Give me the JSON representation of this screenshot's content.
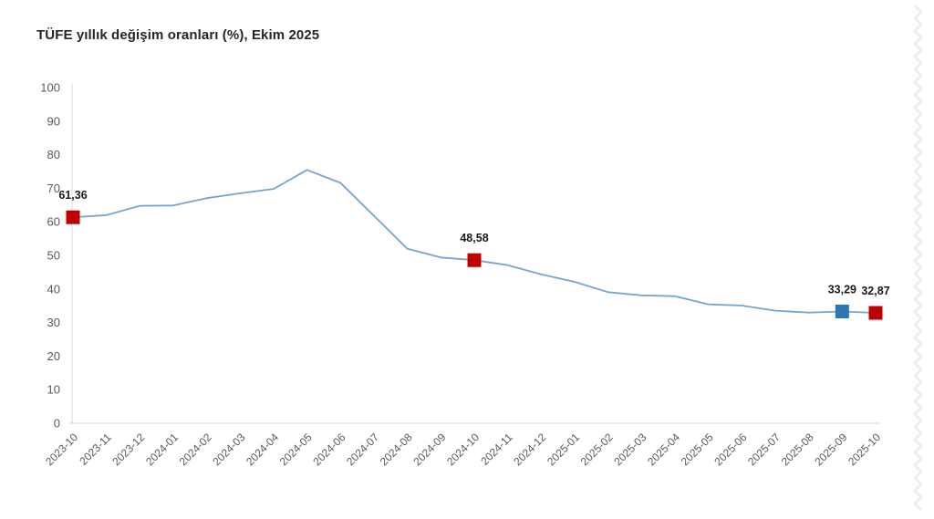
{
  "title": "TÜFE yıllık değişim oranları (%), Ekim 2025",
  "colors": {
    "background": "#ffffff",
    "line": "#74a5cf",
    "marker_red": "#c00000",
    "marker_blue": "#2e75b6",
    "axis_line": "#d9d9d9",
    "tick_text": "#595959",
    "title_text": "#262626",
    "data_label_text": "#1a1a1a",
    "watermark": "#ededed"
  },
  "chart_data": {
    "type": "line",
    "title": "TÜFE yıllık değişim oranları (%), Ekim 2025",
    "xlabel": "",
    "ylabel": "",
    "ylim": [
      0,
      100
    ],
    "ytick_step": 10,
    "grid": false,
    "legend": false,
    "x": [
      "2023-10",
      "2023-11",
      "2023-12",
      "2024-01",
      "2024-02",
      "2024-03",
      "2024-04",
      "2024-05",
      "2024-06",
      "2024-07",
      "2024-08",
      "2024-09",
      "2024-10",
      "2024-11",
      "2024-12",
      "2025-01",
      "2025-02",
      "2025-03",
      "2025-04",
      "2025-05",
      "2025-06",
      "2025-07",
      "2025-08",
      "2025-09",
      "2025-10"
    ],
    "series": [
      {
        "values": [
          61.36,
          61.98,
          64.77,
          64.86,
          67.07,
          68.5,
          69.8,
          75.45,
          71.6,
          61.78,
          51.97,
          49.38,
          48.58,
          47.09,
          44.38,
          42.12,
          39.05,
          38.1,
          37.86,
          35.41,
          35.05,
          33.52,
          32.95,
          33.29,
          32.87
        ]
      }
    ],
    "annotations": [
      {
        "x": "2023-10",
        "label": "61,36",
        "marker": "red"
      },
      {
        "x": "2024-10",
        "label": "48,58",
        "marker": "red"
      },
      {
        "x": "2025-09",
        "label": "33,29",
        "marker": "blue"
      },
      {
        "x": "2025-10",
        "label": "32,87",
        "marker": "red"
      }
    ]
  }
}
